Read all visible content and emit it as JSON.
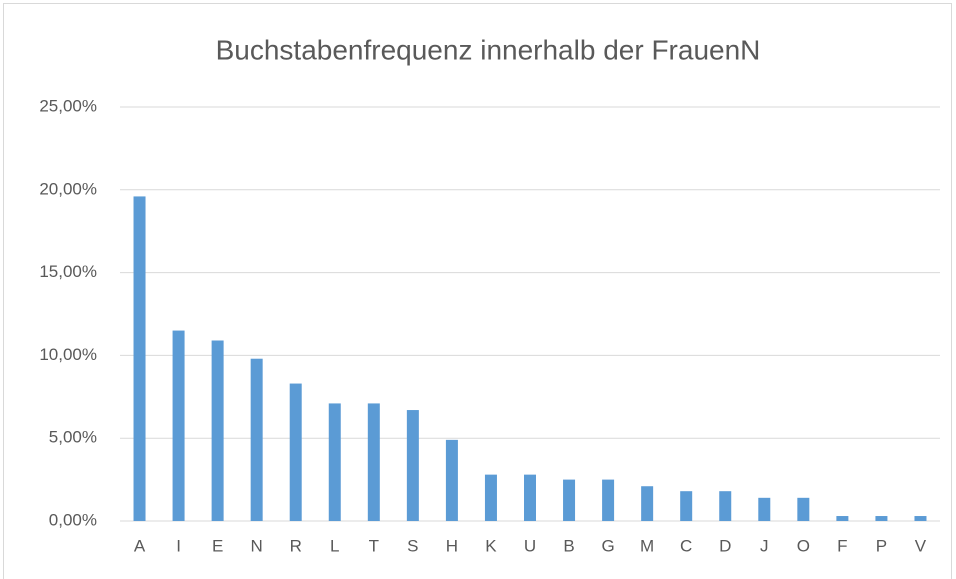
{
  "chart_data": {
    "type": "bar",
    "title": "Buchstabenfrequenz innerhalb der FrauenN",
    "categories": [
      "A",
      "I",
      "E",
      "N",
      "R",
      "L",
      "T",
      "S",
      "H",
      "K",
      "U",
      "B",
      "G",
      "M",
      "C",
      "D",
      "J",
      "O",
      "F",
      "P",
      "V"
    ],
    "values": [
      19.6,
      11.5,
      10.9,
      9.8,
      8.3,
      7.1,
      7.1,
      6.7,
      4.9,
      2.8,
      2.8,
      2.5,
      2.5,
      2.1,
      1.8,
      1.8,
      1.4,
      1.4,
      0.3,
      0.3,
      0.3
    ],
    "color": "#5b9bd5",
    "ylim": [
      0,
      25
    ],
    "yticks": [
      {
        "value": 0,
        "label": "0,00%"
      },
      {
        "value": 5,
        "label": "5,00%"
      },
      {
        "value": 10,
        "label": "10,00%"
      },
      {
        "value": 15,
        "label": "15,00%"
      },
      {
        "value": 20,
        "label": "20,00%"
      },
      {
        "value": 25,
        "label": "25,00%"
      }
    ],
    "grid": true
  }
}
